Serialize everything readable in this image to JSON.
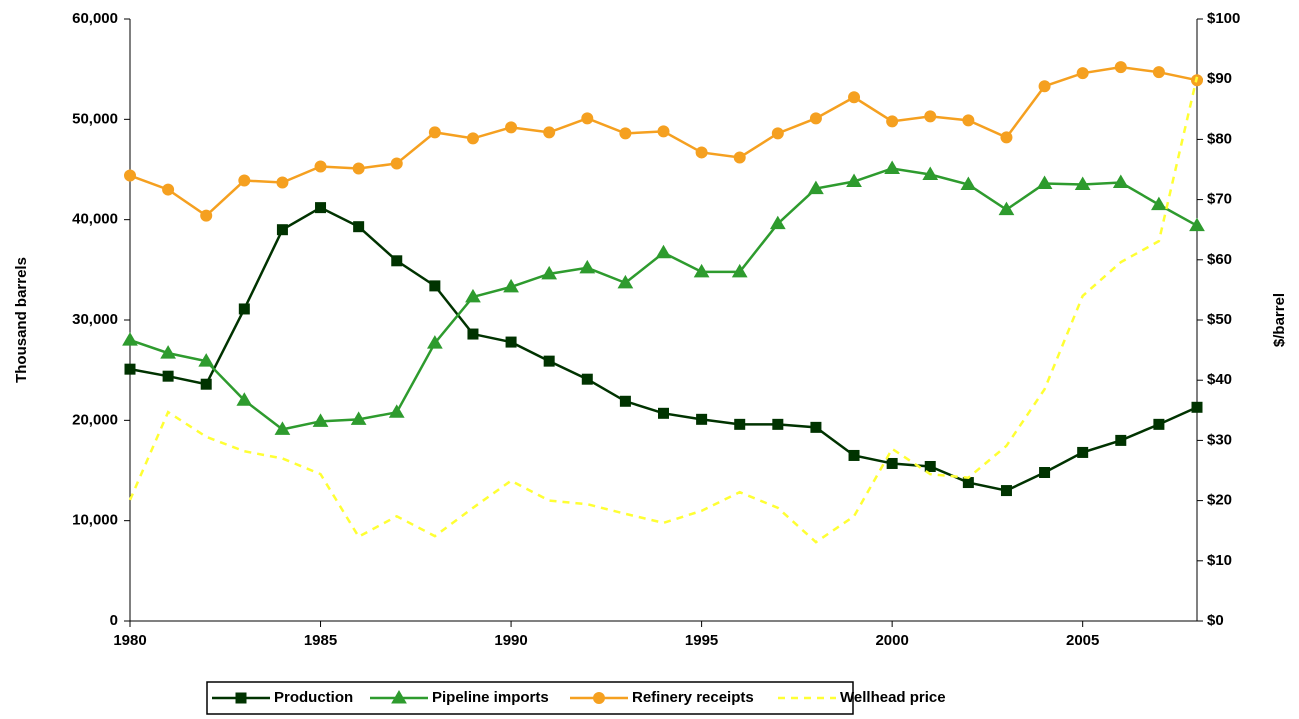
{
  "chart_data": {
    "type": "line",
    "y_label": "Thousand barrels",
    "y2_label": "$/barrel",
    "x": [
      1980,
      1981,
      1982,
      1983,
      1984,
      1985,
      1986,
      1987,
      1988,
      1989,
      1990,
      1991,
      1992,
      1993,
      1994,
      1995,
      1996,
      1997,
      1998,
      1999,
      2000,
      2001,
      2002,
      2003,
      2004,
      2005,
      2006,
      2007,
      2008
    ],
    "xlim": [
      1980,
      2008
    ],
    "xticks": [
      1980,
      1985,
      1990,
      1995,
      2000,
      2005
    ],
    "ylim": [
      0,
      60000
    ],
    "yticks": [
      0,
      {
        "value": 10000,
        "label": "10,000"
      },
      {
        "value": 20000,
        "label": "20,000"
      },
      {
        "value": 30000,
        "label": "30,000"
      },
      {
        "value": 40000,
        "label": "40,000"
      },
      {
        "value": 50000,
        "label": "50,000"
      },
      {
        "value": 60000,
        "label": "60,000"
      }
    ],
    "y2lim": [
      0,
      100
    ],
    "y2ticks": [
      {
        "value": 0,
        "label": "$0"
      },
      {
        "value": 10,
        "label": "$10"
      },
      {
        "value": 20,
        "label": "$20"
      },
      {
        "value": 30,
        "label": "$30"
      },
      {
        "value": 40,
        "label": "$40"
      },
      {
        "value": 50,
        "label": "$50"
      },
      {
        "value": 60,
        "label": "$60"
      },
      {
        "value": 70,
        "label": "$70"
      },
      {
        "value": 80,
        "label": "$80"
      },
      {
        "value": 90,
        "label": "$90"
      },
      {
        "value": 100,
        "label": "$100"
      }
    ],
    "legend": "bottom",
    "series": [
      {
        "name": "Production",
        "color": "#003300",
        "marker": "square",
        "values": [
          25100,
          24400,
          23600,
          31100,
          39000,
          41200,
          39300,
          35900,
          33400,
          28600,
          27800,
          25900,
          24100,
          21900,
          20700,
          20100,
          19600,
          19600,
          19300,
          16500,
          15700,
          15400,
          13800,
          13000,
          14800,
          16800,
          18000,
          19600,
          21300
        ]
      },
      {
        "name": "Pipeline imports",
        "color": "#2e9b2e",
        "marker": "triangle",
        "values": [
          28000,
          26700,
          25900,
          22000,
          19100,
          19900,
          20100,
          20800,
          27700,
          32300,
          33300,
          34600,
          35200,
          33700,
          36700,
          34800,
          34800,
          39600,
          43100,
          43800,
          45100,
          44500,
          43500,
          41000,
          43600,
          43500,
          43700,
          41500,
          39400
        ]
      },
      {
        "name": "Refinery receipts",
        "color": "#f5a020",
        "marker": "circle",
        "values": [
          44400,
          43000,
          40400,
          43900,
          43700,
          45300,
          45100,
          45600,
          48700,
          48100,
          49200,
          48700,
          50100,
          48600,
          48800,
          46700,
          46200,
          48600,
          50100,
          52200,
          49800,
          50300,
          49900,
          48200,
          53300,
          54600,
          55200,
          54700,
          53900
        ]
      },
      {
        "name": "Wellhead price",
        "color": "#ffff33",
        "dashed": true,
        "axis": "y2",
        "values": [
          20.1,
          34.7,
          30.6,
          28.2,
          27,
          24.4,
          14,
          17.4,
          14.1,
          18.8,
          23.3,
          20,
          19.4,
          17.8,
          16.3,
          18.3,
          21.4,
          18.8,
          13.1,
          17.4,
          28.6,
          24.4,
          23.8,
          29.1,
          38.5,
          54,
          59.6,
          63.1,
          90.4
        ]
      }
    ]
  }
}
